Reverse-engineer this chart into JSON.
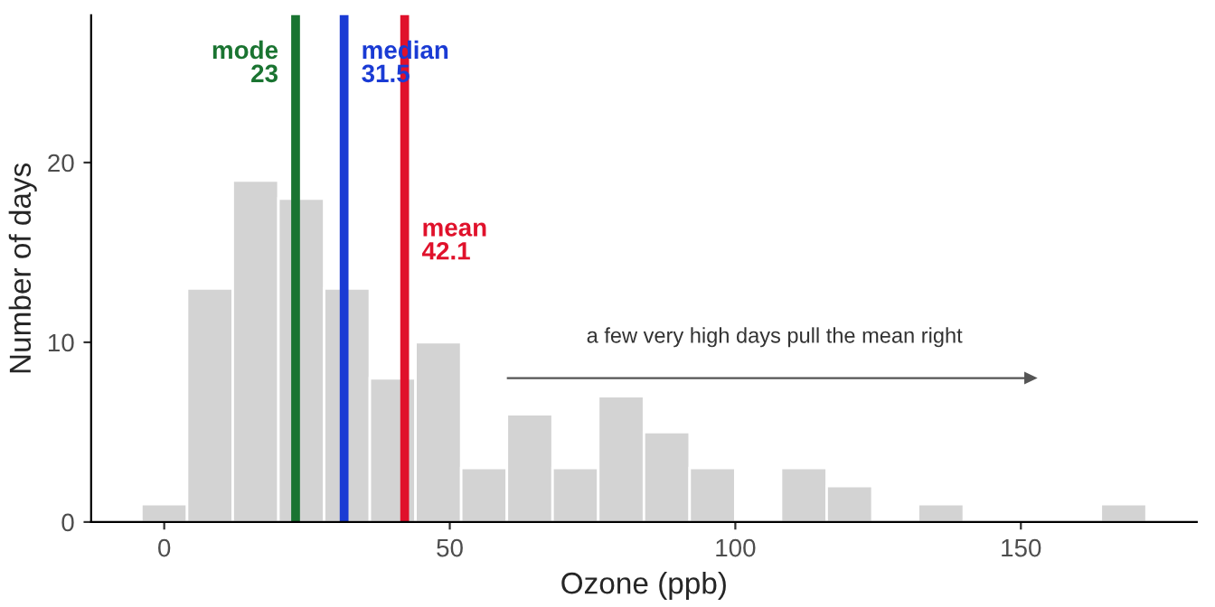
{
  "chart_data": {
    "type": "histogram",
    "xlabel": "Ozone (ppb)",
    "ylabel": "Number of days",
    "bins": [
      -4,
      4,
      12,
      20,
      28,
      36,
      44,
      52,
      60,
      68,
      76,
      84,
      92,
      100,
      108,
      116,
      124,
      132,
      140,
      148,
      156,
      164,
      172
    ],
    "values": [
      1,
      13,
      19,
      18,
      13,
      8,
      10,
      3,
      6,
      3,
      7,
      5,
      3,
      0,
      3,
      2,
      0,
      1,
      0,
      0,
      0,
      1
    ],
    "color": "#d3d3d3",
    "xlim": [
      -12.8,
      180.8
    ],
    "xticks": [
      0,
      50,
      100,
      150
    ],
    "ylim": [
      0,
      28.2
    ],
    "yticks": [
      0,
      10,
      20
    ],
    "grid": false,
    "ref_lines": [
      {
        "axis": "x",
        "value": 23,
        "label": "mode\n23",
        "color": "#1a7431"
      },
      {
        "axis": "x",
        "value": 31.5,
        "label": "median\n31.5",
        "color": "#1a3bd4"
      },
      {
        "axis": "x",
        "value": 42.1,
        "label": "mean\n42.1",
        "color": "#e0112b"
      }
    ],
    "annotations": [
      "a few very high days pull the mean right"
    ]
  }
}
